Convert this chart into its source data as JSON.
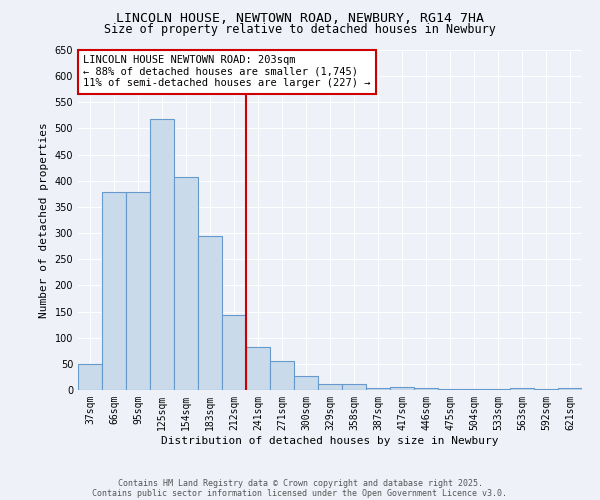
{
  "title": "LINCOLN HOUSE, NEWTOWN ROAD, NEWBURY, RG14 7HA",
  "subtitle": "Size of property relative to detached houses in Newbury",
  "xlabel": "Distribution of detached houses by size in Newbury",
  "ylabel": "Number of detached properties",
  "categories": [
    "37sqm",
    "66sqm",
    "95sqm",
    "125sqm",
    "154sqm",
    "183sqm",
    "212sqm",
    "241sqm",
    "271sqm",
    "300sqm",
    "329sqm",
    "358sqm",
    "387sqm",
    "417sqm",
    "446sqm",
    "475sqm",
    "504sqm",
    "533sqm",
    "563sqm",
    "592sqm",
    "621sqm"
  ],
  "values": [
    50,
    378,
    378,
    519,
    408,
    295,
    143,
    83,
    55,
    27,
    11,
    11,
    4,
    5,
    3,
    2,
    2,
    1,
    3,
    2,
    4
  ],
  "bar_color": "#c9daea",
  "bar_edge_color": "#6699cc",
  "reference_line_x": 6.5,
  "reference_line_color": "#cc0000",
  "annotation_text": "LINCOLN HOUSE NEWTOWN ROAD: 203sqm\n← 88% of detached houses are smaller (1,745)\n11% of semi-detached houses are larger (227) →",
  "annotation_box_color": "#ffffff",
  "annotation_box_edge": "#cc0000",
  "ylim": [
    0,
    650
  ],
  "yticks": [
    0,
    50,
    100,
    150,
    200,
    250,
    300,
    350,
    400,
    450,
    500,
    550,
    600,
    650
  ],
  "footnote1": "Contains HM Land Registry data © Crown copyright and database right 2025.",
  "footnote2": "Contains public sector information licensed under the Open Government Licence v3.0.",
  "bg_color": "#eef2f8",
  "grid_color": "#ffffff",
  "title_fontsize": 9.5,
  "subtitle_fontsize": 8.5,
  "label_fontsize": 8,
  "tick_fontsize": 7,
  "annotation_fontsize": 7.5,
  "footnote_fontsize": 6
}
